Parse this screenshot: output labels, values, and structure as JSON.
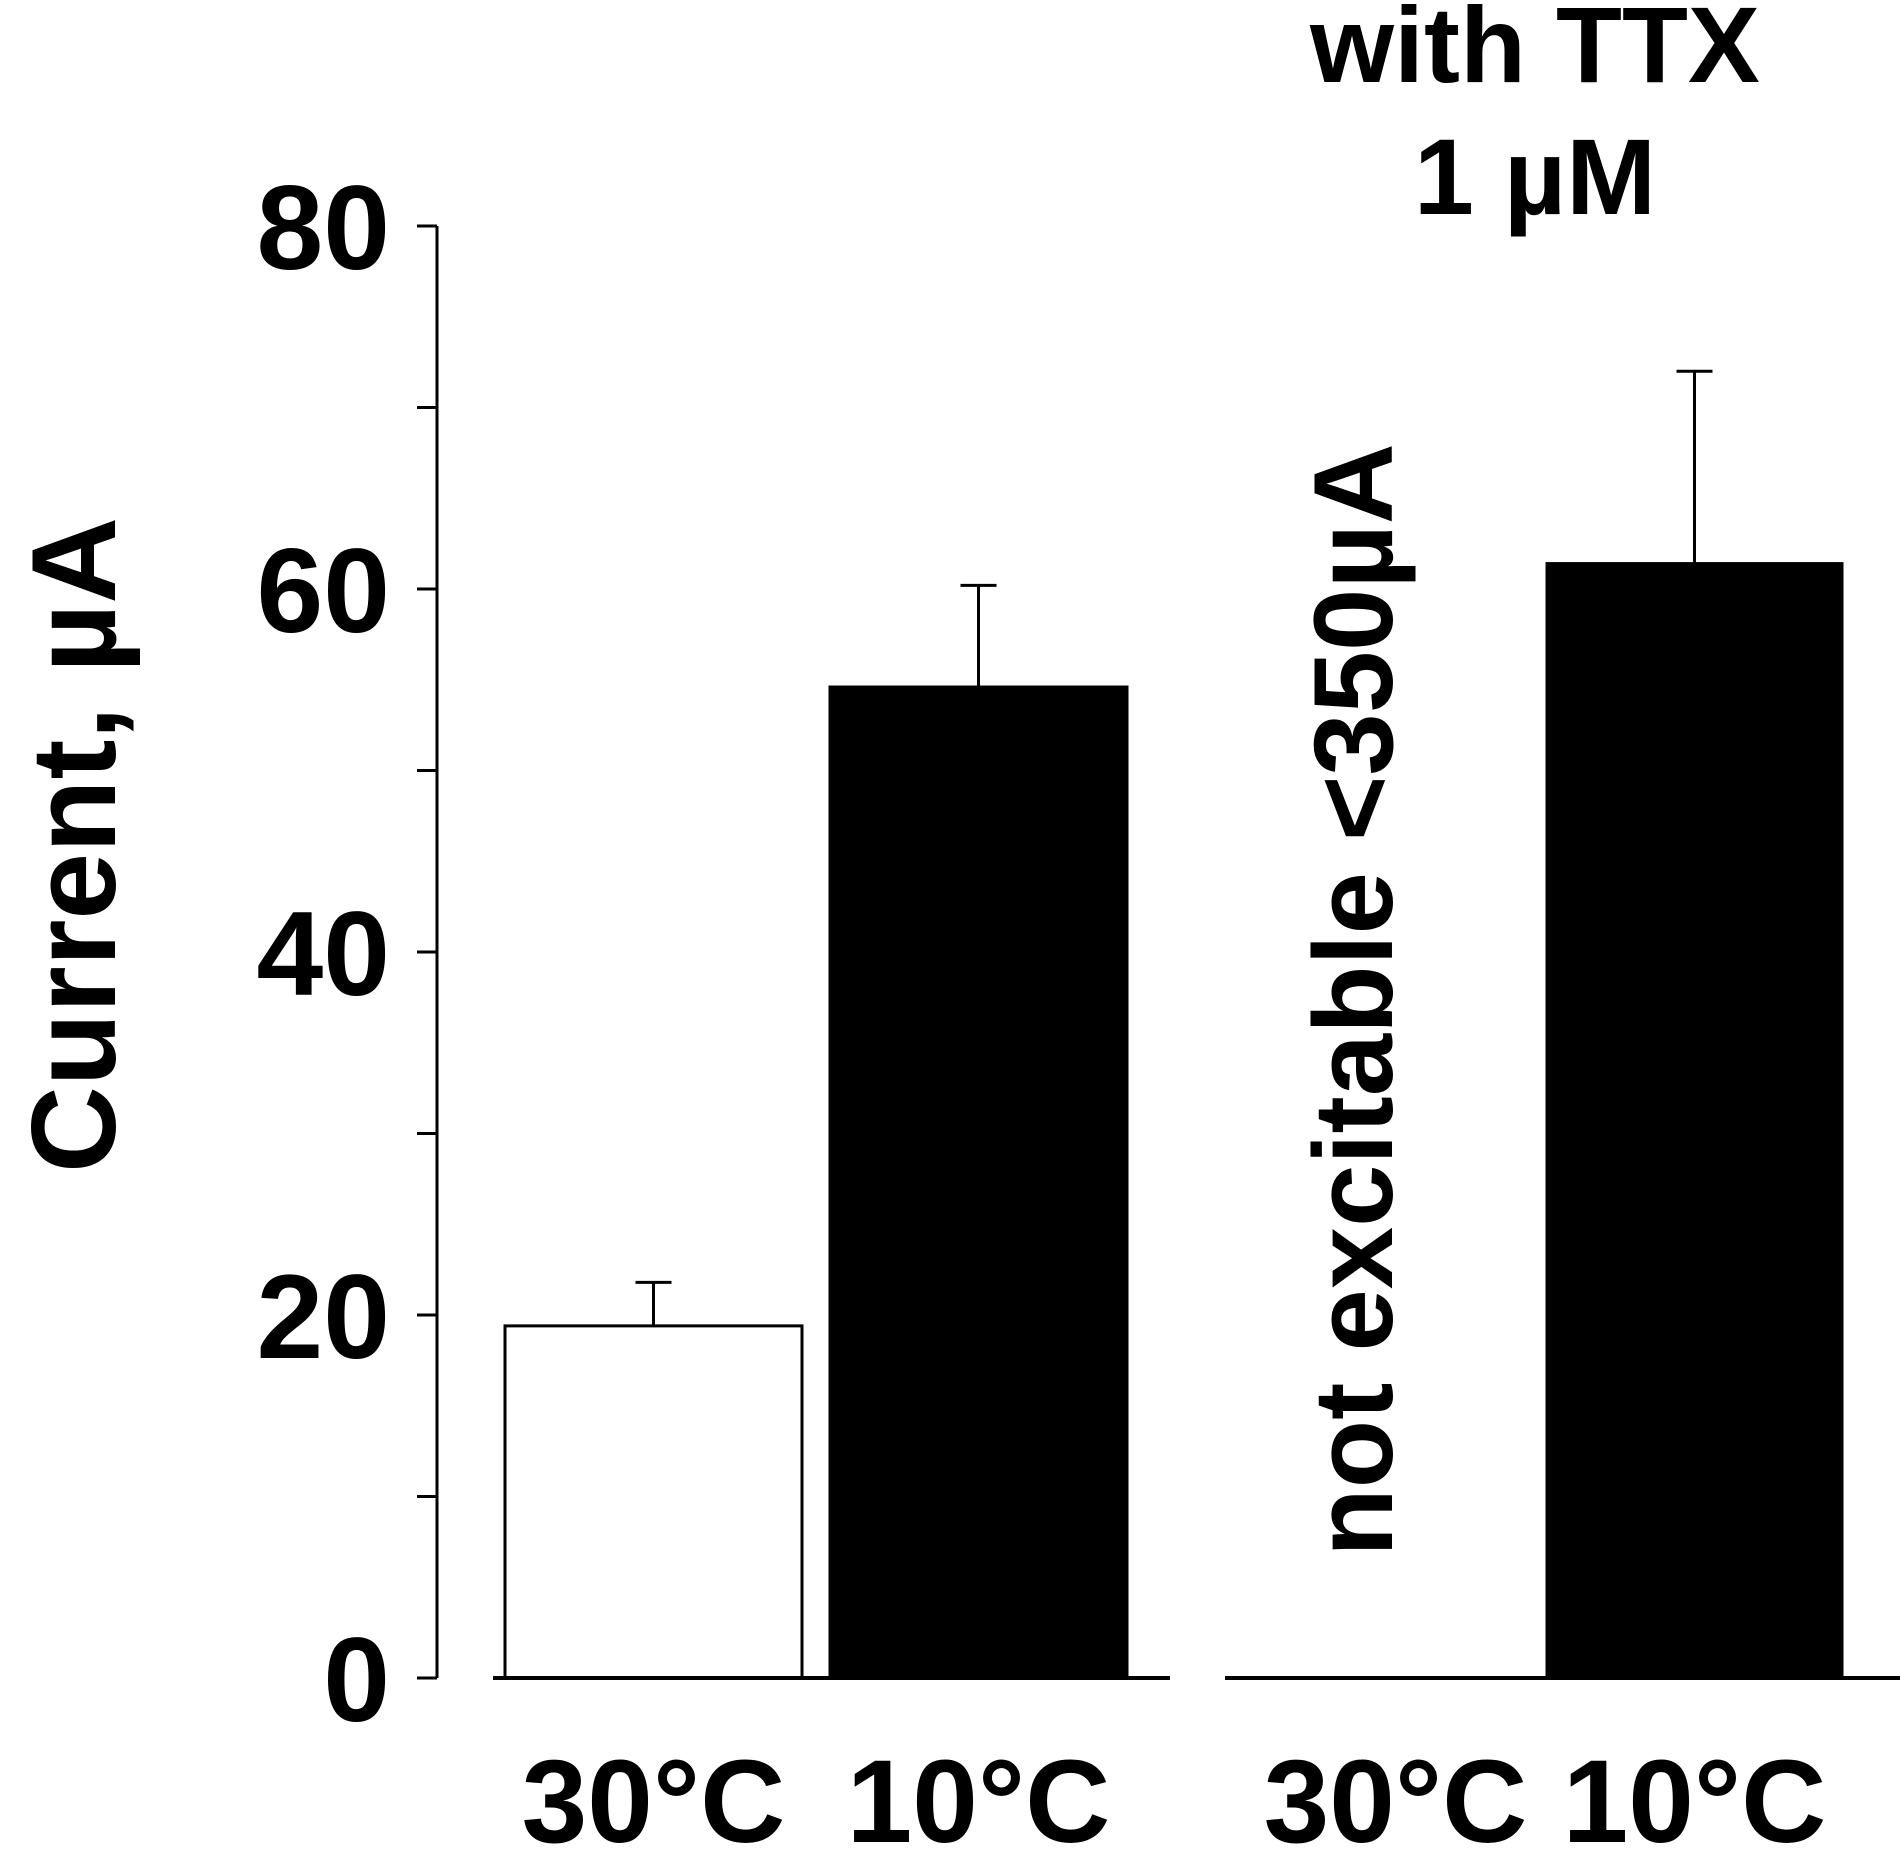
{
  "chart_data": {
    "type": "bar",
    "ylabel": "Current, µA",
    "ylim": [
      0,
      80
    ],
    "yticks": [
      0,
      20,
      40,
      60,
      80
    ],
    "y_minor_step": 10,
    "panels": [
      {
        "categories": [
          "30°C",
          "10°C"
        ],
        "values": [
          19.4,
          54.6
        ],
        "errors": [
          2.4,
          5.6
        ],
        "colors": [
          "#ffffff",
          "#000000"
        ]
      },
      {
        "header": [
          "with TTX",
          "1 µM"
        ],
        "annotation": "not excitable <350µA",
        "categories": [
          "30°C",
          "10°C"
        ],
        "values": [
          null,
          61.4
        ],
        "errors": [
          null,
          10.6
        ],
        "colors": [
          "#ffffff",
          "#000000"
        ]
      }
    ]
  }
}
